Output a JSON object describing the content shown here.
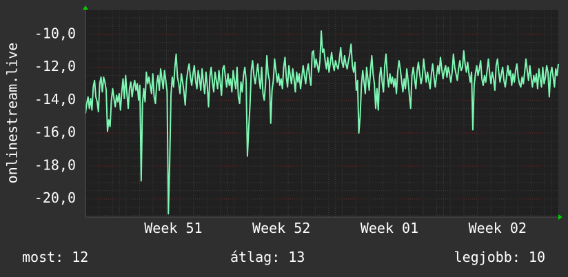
{
  "chart_data": {
    "type": "line",
    "ylabel": "onlinestream.live",
    "ylim": [
      -21.1,
      -8.5
    ],
    "yticks": [
      -20,
      -18,
      -16,
      -14,
      -12,
      -10
    ],
    "ytick_labels": [
      "-20,0",
      "-18,0",
      "-16,0",
      "-14,0",
      "-12,0",
      "-10,0"
    ],
    "xlim": [
      0,
      35
    ],
    "xticks": [
      6.5,
      14.5,
      22.5,
      30.5
    ],
    "xtick_labels": [
      "Week 51",
      "Week 52",
      "Week 01",
      "Week 02"
    ],
    "grid": true,
    "colors": {
      "background": "#2f2f2f",
      "plot": "#202020",
      "line": "#7ff7b4",
      "grid": "#3b3b3b",
      "axis_arrow": "#00cc00",
      "grid_major": "#6a2a2a"
    },
    "series": [
      {
        "values": [
          -14.8,
          -14.2,
          -13.8,
          -14.5,
          -13.9,
          -14.6,
          -13.2,
          -12.8,
          -13.8,
          -14.1,
          -14.7,
          -13.0,
          -12.6,
          -13.5,
          -12.6,
          -12.9,
          -13.4,
          -15.9,
          -15.2,
          -15.6,
          -14.0,
          -13.3,
          -13.9,
          -14.4,
          -13.7,
          -14.1,
          -13.6,
          -14.6,
          -13.5,
          -12.7,
          -13.9,
          -12.5,
          -13.6,
          -14.5,
          -13.3,
          -12.9,
          -13.8,
          -13.2,
          -12.8,
          -13.4,
          -13.0,
          -14.0,
          -13.1,
          -18.9,
          -14.2,
          -13.3,
          -14.1,
          -12.3,
          -13.0,
          -12.6,
          -13.1,
          -13.6,
          -12.4,
          -13.8,
          -14.2,
          -13.0,
          -12.5,
          -13.4,
          -12.1,
          -12.7,
          -13.3,
          -12.2,
          -12.8,
          -13.5,
          -20.9,
          -17.8,
          -13.7,
          -12.6,
          -13.2,
          -12.0,
          -11.2,
          -12.6,
          -13.0,
          -13.6,
          -12.4,
          -12.9,
          -13.5,
          -14.3,
          -12.8,
          -12.2,
          -11.8,
          -12.6,
          -13.1,
          -12.4,
          -11.9,
          -12.8,
          -13.3,
          -12.2,
          -12.7,
          -13.4,
          -12.1,
          -12.9,
          -13.6,
          -12.3,
          -13.1,
          -14.4,
          -12.6,
          -12.0,
          -12.9,
          -13.5,
          -12.3,
          -12.8,
          -13.3,
          -12.2,
          -12.9,
          -13.7,
          -12.1,
          -11.9,
          -12.6,
          -13.2,
          -12.4,
          -13.1,
          -12.7,
          -13.5,
          -12.2,
          -12.8,
          -13.3,
          -12.0,
          -13.8,
          -14.2,
          -12.9,
          -13.5,
          -12.5,
          -12.0,
          -12.8,
          -17.4,
          -15.7,
          -14.3,
          -12.2,
          -11.6,
          -12.5,
          -13.0,
          -12.4,
          -11.8,
          -12.7,
          -13.3,
          -12.0,
          -13.6,
          -14.0,
          -13.0,
          -11.3,
          -12.4,
          -12.8,
          -15.4,
          -13.4,
          -12.8,
          -11.5,
          -12.2,
          -12.9,
          -12.4,
          -13.1,
          -12.7,
          -13.3,
          -12.0,
          -11.4,
          -12.6,
          -13.2,
          -11.9,
          -12.5,
          -13.0,
          -12.1,
          -12.7,
          -13.5,
          -12.3,
          -12.9,
          -12.4,
          -13.3,
          -12.6,
          -11.9,
          -12.5,
          -13.0,
          -12.2,
          -11.8,
          -12.6,
          -13.1,
          -11.1,
          -11.0,
          -12.0,
          -11.5,
          -11.9,
          -12.3,
          -11.6,
          -9.8,
          -11.1,
          -10.9,
          -11.6,
          -12.1,
          -11.4,
          -12.3,
          -11.7,
          -11.1,
          -11.8,
          -12.2,
          -11.6,
          -11.9,
          -12.1,
          -11.5,
          -10.8,
          -11.7,
          -12.0,
          -11.3,
          -11.8,
          -12.1,
          -11.6,
          -11.2,
          -10.6,
          -11.9,
          -12.3,
          -11.7,
          -13.4,
          -12.8,
          -16.0,
          -15.0,
          -13.1,
          -12.2,
          -12.9,
          -13.6,
          -12.0,
          -12.7,
          -13.4,
          -12.2,
          -11.3,
          -12.4,
          -13.0,
          -14.5,
          -13.3,
          -14.6,
          -12.6,
          -12.0,
          -12.9,
          -13.5,
          -11.9,
          -11.2,
          -12.5,
          -13.2,
          -12.4,
          -13.0,
          -12.6,
          -13.2,
          -12.7,
          -13.6,
          -12.3,
          -11.6,
          -12.1,
          -12.8,
          -13.5,
          -12.7,
          -13.3,
          -12.1,
          -12.8,
          -13.7,
          -14.5,
          -12.5,
          -12.0,
          -12.7,
          -13.3,
          -12.2,
          -11.7,
          -12.4,
          -13.0,
          -12.6,
          -11.5,
          -12.2,
          -12.9,
          -12.3,
          -12.8,
          -13.3,
          -12.4,
          -11.8,
          -12.6,
          -13.2,
          -12.5,
          -11.9,
          -12.4,
          -11.4,
          -12.1,
          -12.7,
          -12.2,
          -11.9,
          -12.6,
          -12.0,
          -12.4,
          -12.9,
          -12.3,
          -11.2,
          -12.0,
          -12.4,
          -12.8,
          -12.1,
          -11.6,
          -12.2,
          -12.0,
          -11.0,
          -11.8,
          -12.3,
          -11.7,
          -12.4,
          -12.9,
          -12.3,
          -15.8,
          -13.1,
          -12.4,
          -11.9,
          -12.5,
          -12.1,
          -11.6,
          -12.7,
          -13.1,
          -12.5,
          -12.9,
          -12.2,
          -11.5,
          -12.4,
          -13.0,
          -12.3,
          -12.7,
          -13.4,
          -11.9,
          -11.5,
          -12.3,
          -12.9,
          -12.4,
          -12.0,
          -12.8,
          -13.2,
          -12.6,
          -11.9,
          -12.5,
          -12.2,
          -13.1,
          -12.4,
          -12.9,
          -12.2,
          -11.8,
          -12.6,
          -13.0,
          -13.2,
          -12.6,
          -13.0,
          -12.3,
          -11.5,
          -12.2,
          -12.8,
          -11.9,
          -12.6,
          -13.2,
          -12.5,
          -12.9,
          -12.4,
          -13.3,
          -12.1,
          -12.7,
          -13.2,
          -12.0,
          -13.0,
          -12.6,
          -11.9,
          -12.3,
          -13.8,
          -12.4,
          -12.0,
          -12.6,
          -13.2,
          -12.1,
          -12.5,
          -11.8
        ]
      }
    ]
  },
  "stats": {
    "current": "most: 12",
    "average": "átlag: 13",
    "best": "legjobb: 10"
  }
}
